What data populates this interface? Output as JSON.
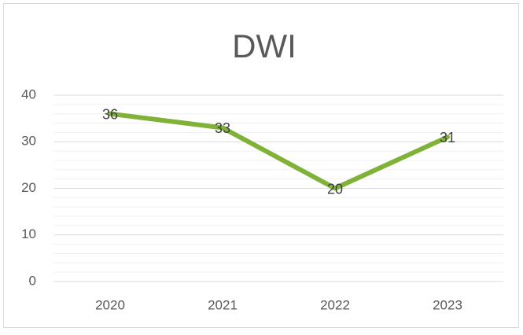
{
  "chart_data": {
    "type": "line",
    "title": "DWI",
    "categories": [
      "2020",
      "2021",
      "2022",
      "2023"
    ],
    "series": [
      {
        "name": "DWI",
        "color": "#7fb236",
        "values": [
          36,
          33,
          20,
          31
        ]
      }
    ],
    "ylim": [
      0,
      40
    ],
    "yticks": [
      0,
      10,
      20,
      30,
      40
    ],
    "minor_yticks": [
      2,
      4,
      6,
      8,
      12,
      14,
      16,
      18,
      22,
      24,
      26,
      28,
      32,
      34,
      36,
      38
    ],
    "grid": true,
    "data_labels": true
  }
}
